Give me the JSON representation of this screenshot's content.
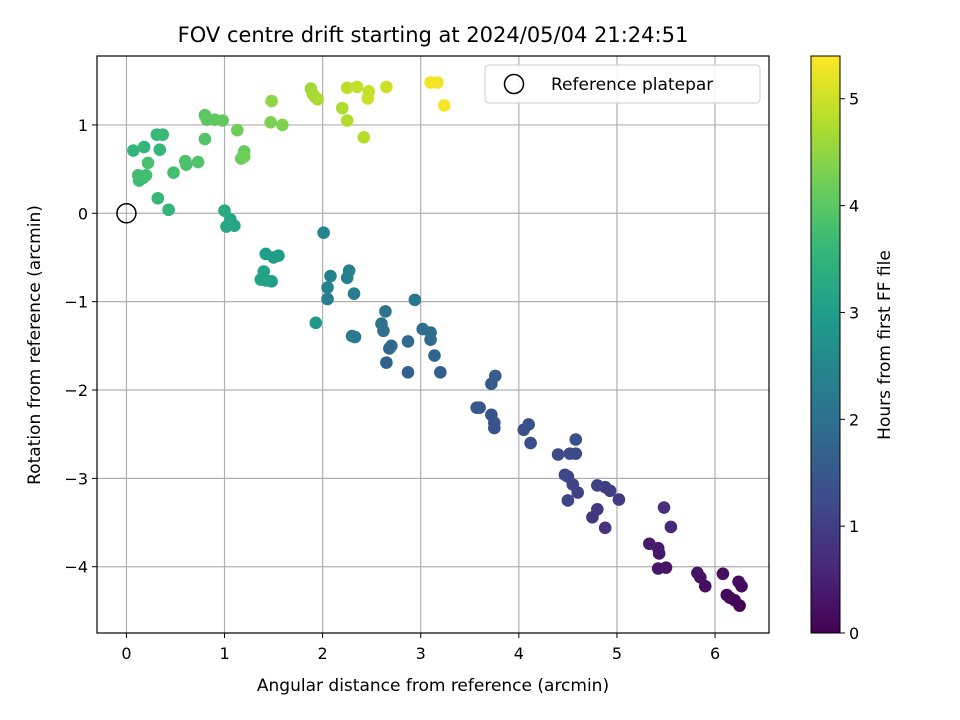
{
  "chart_data": {
    "type": "scatter",
    "title": "FOV centre drift starting at 2024/05/04 21:24:51",
    "xlabel": "Angular distance from reference (arcmin)",
    "ylabel": "Rotation from reference (arcmin)",
    "xlim": [
      -0.3,
      6.55
    ],
    "ylim": [
      -4.75,
      1.78
    ],
    "xticks": [
      0,
      1,
      2,
      3,
      4,
      5,
      6
    ],
    "yticks": [
      -4,
      -3,
      -2,
      -1,
      0,
      1
    ],
    "xtick_labels": [
      "0",
      "1",
      "2",
      "3",
      "4",
      "5",
      "6"
    ],
    "ytick_labels": [
      "−4",
      "−3",
      "−2",
      "−1",
      "0",
      "1"
    ],
    "grid": true,
    "legend": {
      "position": "top-right",
      "entries": [
        "Reference platepar"
      ]
    },
    "reference_point": {
      "x": 0,
      "y": 0,
      "marker": "open-circle"
    },
    "colorbar": {
      "label": "Hours from first FF file",
      "range": [
        0,
        5.4
      ],
      "ticks": [
        0,
        1,
        2,
        3,
        4,
        5
      ],
      "tick_labels": [
        "0",
        "1",
        "2",
        "3",
        "4",
        "5"
      ],
      "colormap": "viridis",
      "stops": [
        "#440154",
        "#482878",
        "#3e4989",
        "#31688e",
        "#26828e",
        "#1f9e89",
        "#35b779",
        "#6ece58",
        "#b5de2b",
        "#fde725"
      ]
    },
    "series": [
      {
        "points": [
          [
            6.25,
            -4.44,
            0.05
          ],
          [
            6.2,
            -4.38,
            0.08
          ],
          [
            6.15,
            -4.35,
            0.1
          ],
          [
            6.12,
            -4.32,
            0.12
          ],
          [
            6.27,
            -4.22,
            0.15
          ],
          [
            6.24,
            -4.17,
            0.18
          ],
          [
            6.08,
            -4.08,
            0.2
          ],
          [
            5.9,
            -4.22,
            0.22
          ],
          [
            5.85,
            -4.12,
            0.25
          ],
          [
            5.82,
            -4.07,
            0.28
          ],
          [
            5.5,
            -4.01,
            0.3
          ],
          [
            5.42,
            -4.02,
            0.33
          ],
          [
            5.43,
            -3.85,
            0.35
          ],
          [
            5.42,
            -3.79,
            0.38
          ],
          [
            5.33,
            -3.74,
            0.42
          ],
          [
            5.55,
            -3.55,
            0.6
          ],
          [
            5.48,
            -3.33,
            0.75
          ],
          [
            4.88,
            -3.56,
            0.8
          ],
          [
            4.75,
            -3.44,
            0.85
          ],
          [
            4.8,
            -3.35,
            0.9
          ],
          [
            5.02,
            -3.24,
            0.95
          ],
          [
            4.93,
            -3.14,
            1.0
          ],
          [
            4.88,
            -3.1,
            1.02
          ],
          [
            4.8,
            -3.08,
            1.05
          ],
          [
            4.6,
            -3.16,
            1.08
          ],
          [
            4.55,
            -3.07,
            1.1
          ],
          [
            4.5,
            -3.25,
            1.12
          ],
          [
            4.5,
            -2.98,
            1.15
          ],
          [
            4.47,
            -2.96,
            1.18
          ],
          [
            4.58,
            -2.72,
            1.2
          ],
          [
            4.52,
            -2.72,
            1.22
          ],
          [
            4.4,
            -2.73,
            1.25
          ],
          [
            4.58,
            -2.56,
            1.28
          ],
          [
            4.12,
            -2.6,
            1.3
          ],
          [
            4.1,
            -2.39,
            1.33
          ],
          [
            4.05,
            -2.45,
            1.36
          ],
          [
            3.75,
            -2.43,
            1.38
          ],
          [
            3.75,
            -2.37,
            1.4
          ],
          [
            3.72,
            -2.28,
            1.42
          ],
          [
            3.6,
            -2.2,
            1.45
          ],
          [
            3.57,
            -2.2,
            1.48
          ],
          [
            3.72,
            -1.93,
            1.52
          ],
          [
            3.76,
            -1.84,
            1.55
          ],
          [
            3.2,
            -1.8,
            1.6
          ],
          [
            2.87,
            -1.8,
            1.65
          ],
          [
            2.65,
            -1.69,
            1.7
          ],
          [
            3.14,
            -1.61,
            1.75
          ],
          [
            2.7,
            -1.5,
            1.8
          ],
          [
            2.68,
            -1.53,
            1.82
          ],
          [
            2.87,
            -1.45,
            1.85
          ],
          [
            3.1,
            -1.43,
            1.88
          ],
          [
            3.1,
            -1.35,
            1.92
          ],
          [
            3.02,
            -1.31,
            1.95
          ],
          [
            2.62,
            -1.33,
            2.0
          ],
          [
            2.6,
            -1.25,
            2.03
          ],
          [
            2.64,
            -1.11,
            2.06
          ],
          [
            2.94,
            -0.98,
            2.1
          ],
          [
            2.33,
            -1.4,
            2.2
          ],
          [
            2.3,
            -1.39,
            2.22
          ],
          [
            2.32,
            -0.91,
            2.25
          ],
          [
            2.05,
            -0.97,
            2.28
          ],
          [
            2.25,
            -0.73,
            2.32
          ],
          [
            2.27,
            -0.65,
            2.35
          ],
          [
            2.08,
            -0.71,
            2.38
          ],
          [
            2.05,
            -0.84,
            2.42
          ],
          [
            2.01,
            -0.22,
            2.45
          ],
          [
            1.93,
            -1.24,
            2.9
          ],
          [
            1.55,
            -0.48,
            2.95
          ],
          [
            1.5,
            -0.5,
            2.98
          ],
          [
            1.42,
            -0.46,
            3.0
          ],
          [
            1.48,
            -0.77,
            3.05
          ],
          [
            1.42,
            -0.76,
            3.08
          ],
          [
            1.37,
            -0.75,
            3.12
          ],
          [
            1.4,
            -0.66,
            3.1
          ],
          [
            1.1,
            -0.14,
            3.18
          ],
          [
            1.06,
            -0.07,
            3.2
          ],
          [
            1.02,
            -0.15,
            3.25
          ],
          [
            1.0,
            0.03,
            3.3
          ],
          [
            0.43,
            0.04,
            3.55
          ],
          [
            0.32,
            0.17,
            3.6
          ],
          [
            0.13,
            0.37,
            3.7
          ],
          [
            0.17,
            0.4,
            3.72
          ],
          [
            0.12,
            0.43,
            3.74
          ],
          [
            0.2,
            0.43,
            3.75
          ],
          [
            0.48,
            0.46,
            3.78
          ],
          [
            0.22,
            0.57,
            3.8
          ],
          [
            0.61,
            0.55,
            3.82
          ],
          [
            0.6,
            0.59,
            3.85
          ],
          [
            0.73,
            0.58,
            3.88
          ],
          [
            0.07,
            0.71,
            3.55
          ],
          [
            0.18,
            0.75,
            3.58
          ],
          [
            0.34,
            0.72,
            3.6
          ],
          [
            0.31,
            0.89,
            3.62
          ],
          [
            0.37,
            0.89,
            3.65
          ],
          [
            0.8,
            0.84,
            3.9
          ],
          [
            1.2,
            0.7,
            4.1
          ],
          [
            1.17,
            0.62,
            4.15
          ],
          [
            1.2,
            0.64,
            4.18
          ],
          [
            0.8,
            1.11,
            4.0
          ],
          [
            0.82,
            1.06,
            4.02
          ],
          [
            0.9,
            1.06,
            4.05
          ],
          [
            0.98,
            1.05,
            4.08
          ],
          [
            1.13,
            0.94,
            4.2
          ],
          [
            1.47,
            1.03,
            4.3
          ],
          [
            1.59,
            1.0,
            4.35
          ],
          [
            1.48,
            1.27,
            4.45
          ],
          [
            1.88,
            1.41,
            4.6
          ],
          [
            1.9,
            1.35,
            4.65
          ],
          [
            1.92,
            1.32,
            4.68
          ],
          [
            1.95,
            1.29,
            4.7
          ],
          [
            2.2,
            1.19,
            4.75
          ],
          [
            2.25,
            1.05,
            4.78
          ],
          [
            2.42,
            0.86,
            4.8
          ],
          [
            2.25,
            1.42,
            4.85
          ],
          [
            2.35,
            1.43,
            4.9
          ],
          [
            2.47,
            1.38,
            4.92
          ],
          [
            2.46,
            1.3,
            4.95
          ],
          [
            2.65,
            1.43,
            5.0
          ],
          [
            3.1,
            1.48,
            5.3
          ],
          [
            3.17,
            1.48,
            5.32
          ],
          [
            3.24,
            1.22,
            5.35
          ]
        ]
      }
    ]
  }
}
